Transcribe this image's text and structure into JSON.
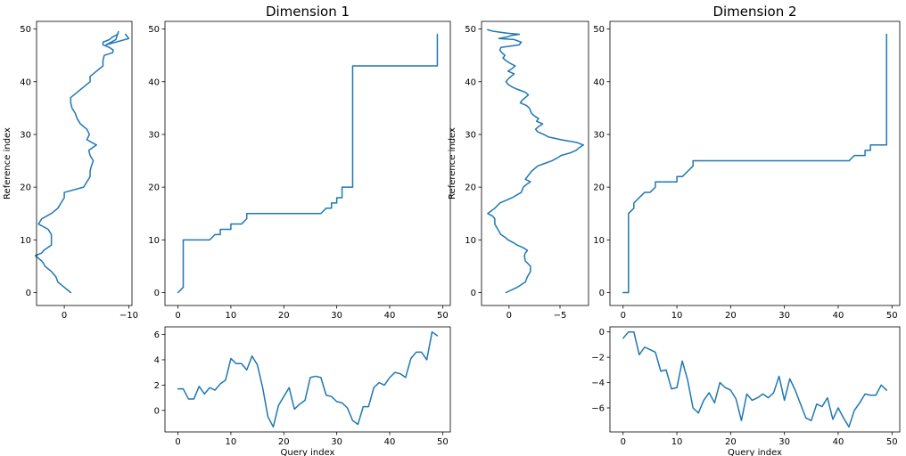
{
  "colors": {
    "series": "#1f77b4",
    "axis": "#000000",
    "background": "#ffffff"
  },
  "chart_data": [
    {
      "id": "d1-left",
      "type": "line",
      "title": "",
      "xlabel": "",
      "ylabel": "Reference index",
      "xlim": [
        4.3,
        -10.5
      ],
      "ylim": [
        -2.45,
        51.45
      ],
      "xticks": [
        0,
        -10
      ],
      "yticks": [
        0,
        10,
        20,
        30,
        40,
        50
      ],
      "grid": false,
      "x": [
        -1,
        0,
        1,
        1.3,
        2,
        3,
        3.2,
        3.5,
        4.5,
        3.5,
        3.2,
        2,
        2,
        2,
        2.5,
        4,
        3.5,
        2,
        1,
        0.5,
        0,
        0,
        -3,
        -3.5,
        -4,
        -4,
        -4.2,
        -4.5,
        -4,
        -3.8,
        -5,
        -3.5,
        -3.9,
        -3.5,
        -2.5,
        -2,
        -1.7,
        -1.2,
        -1,
        -1,
        -2,
        -3,
        -4,
        -4,
        -5,
        -6,
        -6,
        -6.2,
        -7.5,
        -7.6,
        -7,
        -6,
        -6,
        -7,
        -7.5,
        -8.3,
        -8.4,
        -8,
        -6.5,
        -10,
        -9.5
      ],
      "y": [
        0,
        1,
        2,
        3,
        4,
        5,
        5.5,
        6,
        7,
        7.5,
        8,
        9,
        10,
        11,
        12,
        13,
        14,
        15,
        16,
        17,
        18,
        19,
        20,
        21,
        22,
        23,
        24,
        25,
        26,
        27,
        28,
        29,
        30,
        31,
        32,
        33,
        34,
        35,
        36,
        37,
        38,
        39,
        40,
        41,
        42,
        43,
        44,
        45,
        45.5,
        46,
        46.5,
        47,
        47.5,
        48,
        48.5,
        49,
        49.5,
        48,
        47,
        48.2,
        49
      ]
    },
    {
      "id": "d1-main",
      "type": "line",
      "title": "Dimension 1",
      "xlabel": "",
      "ylabel": "",
      "xlim": [
        -2.45,
        51.45
      ],
      "ylim": [
        -2.45,
        51.45
      ],
      "xticks": [
        0,
        10,
        20,
        30,
        40,
        50
      ],
      "yticks": [
        0,
        10,
        20,
        30,
        40,
        50
      ],
      "grid": false,
      "x": [
        0,
        1,
        1,
        6,
        7,
        7,
        8,
        8,
        10,
        10,
        12,
        13,
        13,
        27,
        28,
        29,
        29,
        30,
        30,
        31,
        31,
        32,
        33,
        33,
        33,
        49,
        49
      ],
      "y": [
        0,
        1,
        10,
        10,
        11,
        11,
        11,
        12,
        12,
        13,
        13,
        14,
        15,
        15,
        16,
        16,
        17,
        17,
        18,
        18,
        20,
        20,
        20,
        21,
        43,
        43,
        49
      ]
    },
    {
      "id": "d1-cost",
      "type": "line",
      "title": "",
      "xlabel": "Query index",
      "ylabel": "",
      "xlim": [
        -2.45,
        51.45
      ],
      "ylim": [
        -1.7,
        6.6
      ],
      "xticks": [
        0,
        10,
        20,
        30,
        40,
        50
      ],
      "yticks": [
        0,
        2,
        4,
        6
      ],
      "grid": false,
      "x": [
        0,
        1,
        2,
        3,
        4,
        5,
        6,
        7,
        8,
        9,
        10,
        11,
        12,
        13,
        14,
        15,
        16,
        17,
        18,
        19,
        20,
        21,
        22,
        23,
        24,
        25,
        26,
        27,
        28,
        29,
        30,
        31,
        32,
        33,
        34,
        35,
        36,
        37,
        38,
        39,
        40,
        41,
        42,
        43,
        44,
        45,
        46,
        47,
        48,
        49
      ],
      "y": [
        1.7,
        1.7,
        0.9,
        0.9,
        1.9,
        1.3,
        1.8,
        1.6,
        2.1,
        2.4,
        4.1,
        3.7,
        3.7,
        3.2,
        4.3,
        3.6,
        1.8,
        -0.5,
        -1.3,
        0.4,
        1.1,
        1.8,
        0.1,
        0.5,
        0.8,
        2.6,
        2.7,
        2.6,
        1.2,
        1.1,
        0.7,
        0.6,
        0.2,
        -0.8,
        -1.1,
        0.3,
        0.3,
        1.8,
        2.2,
        2.0,
        2.6,
        3.0,
        2.9,
        2.6,
        4.1,
        4.6,
        4.6,
        4.0,
        6.2,
        5.9
      ]
    },
    {
      "id": "d2-left",
      "type": "line",
      "title": "",
      "xlabel": "",
      "ylabel": "Reference index",
      "xlim": [
        2.7,
        -7.8
      ],
      "ylim": [
        -2.45,
        51.45
      ],
      "xticks": [
        0,
        -5
      ],
      "yticks": [
        0,
        10,
        20,
        30,
        40,
        50
      ],
      "grid": false,
      "x": [
        0.3,
        -0.8,
        -1.6,
        -1.8,
        -2.1,
        -2.1,
        -1.6,
        -1.5,
        -1.6,
        -1.8,
        -1.4,
        -0.8,
        -0.4,
        0.1,
        0.4,
        0.8,
        1.1,
        1.4,
        1.4,
        1.6,
        2.1,
        1.4,
        0.9,
        -0.3,
        -1.2,
        -1.4,
        -1.7,
        -2.1,
        -1.6,
        -1.8,
        -2.2,
        -2.8,
        -3.5,
        -4.2,
        -4.7,
        -5.1,
        -6,
        -6.6,
        -6.9,
        -7.3,
        -6.6,
        -5.1,
        -3.9,
        -3.4,
        -2.8,
        -2.6,
        -2.9,
        -3.3,
        -2.7,
        -2.9,
        -2.5,
        -2.2,
        -2.1,
        -2.0,
        -1.7,
        -1.1,
        -1.3,
        -1.6,
        -1.9,
        -1.6,
        -0.9,
        -0.3,
        0.1,
        0.3,
        0.1,
        -0.2,
        -0.5,
        0.1,
        -0.3,
        -0.6,
        -0.1,
        0.3,
        0.6,
        0.4,
        0.7,
        0.9,
        0.8,
        -1.0,
        -1.2,
        -0.5,
        1.0,
        0.2,
        -0.3,
        -1.0,
        0.1,
        0.9,
        1.6,
        1.8,
        2.0,
        2.1
      ],
      "y": [
        0,
        1,
        2,
        3,
        4,
        5,
        6,
        7,
        7.5,
        8,
        8.5,
        9,
        9.5,
        10,
        10.5,
        11,
        12,
        13,
        14,
        14.5,
        15,
        16,
        17,
        18,
        19,
        20,
        20.5,
        21,
        21.5,
        22,
        23,
        24,
        24.5,
        25,
        25.5,
        26,
        26.5,
        27,
        27.5,
        28,
        28.5,
        29,
        29.5,
        30,
        30.5,
        31,
        31.5,
        32,
        32.5,
        33,
        33.5,
        34,
        34.5,
        35,
        35.5,
        36,
        36.5,
        37,
        37.5,
        38,
        38.5,
        39,
        39.5,
        40,
        40.5,
        41,
        41.5,
        42,
        42.5,
        43,
        43.5,
        44,
        44.5,
        45,
        45.5,
        46,
        46.5,
        47,
        47.5,
        48,
        48.2,
        48.5,
        48.8,
        49,
        49.2,
        49.4,
        49.6,
        49.7,
        49.8,
        49.9
      ]
    },
    {
      "id": "d2-main",
      "type": "line",
      "title": "Dimension 2",
      "xlabel": "",
      "ylabel": "",
      "xlim": [
        -2.45,
        51.45
      ],
      "ylim": [
        -2.45,
        51.45
      ],
      "xticks": [
        0,
        10,
        20,
        30,
        40,
        50
      ],
      "yticks": [
        0,
        10,
        20,
        30,
        40,
        50
      ],
      "grid": false,
      "x": [
        0,
        1,
        1,
        2,
        2,
        3,
        4,
        5,
        6,
        6,
        10,
        10,
        11,
        12,
        13,
        13,
        42,
        43,
        45,
        45,
        46,
        46,
        49,
        49
      ],
      "y": [
        0,
        0,
        15,
        16,
        17,
        18,
        19,
        19,
        20,
        21,
        21,
        22,
        22,
        23,
        24,
        25,
        25,
        26,
        26,
        27,
        27,
        28,
        28,
        49
      ]
    },
    {
      "id": "d2-cost",
      "type": "line",
      "title": "",
      "xlabel": "Query index",
      "ylabel": "",
      "xlim": [
        -2.45,
        51.45
      ],
      "ylim": [
        -7.9,
        0.4
      ],
      "xticks": [
        0,
        10,
        20,
        30,
        40,
        50
      ],
      "yticks": [
        0,
        -2,
        -4,
        -6
      ],
      "grid": false,
      "x": [
        0,
        1,
        2,
        3,
        4,
        5,
        6,
        7,
        8,
        9,
        10,
        11,
        12,
        13,
        14,
        15,
        16,
        17,
        18,
        19,
        20,
        21,
        22,
        23,
        24,
        25,
        26,
        27,
        28,
        29,
        30,
        31,
        32,
        33,
        34,
        35,
        36,
        37,
        38,
        39,
        40,
        41,
        42,
        43,
        44,
        45,
        46,
        47,
        48,
        49
      ],
      "y": [
        -0.5,
        0,
        0,
        -1.8,
        -1.2,
        -1.4,
        -1.6,
        -3.1,
        -3.0,
        -4.5,
        -4.4,
        -2.3,
        -3.8,
        -6.0,
        -6.4,
        -5.4,
        -4.8,
        -5.6,
        -4.0,
        -4.4,
        -4.6,
        -5.3,
        -7.0,
        -4.9,
        -5.4,
        -5.2,
        -4.9,
        -5.2,
        -4.8,
        -3.5,
        -5.4,
        -3.7,
        -4.6,
        -5.7,
        -6.8,
        -7.0,
        -5.7,
        -5.9,
        -5.2,
        -6.9,
        -6.0,
        -6.8,
        -7.5,
        -6.2,
        -5.6,
        -4.9,
        -5.0,
        -5.0,
        -4.2,
        -4.6
      ]
    }
  ]
}
